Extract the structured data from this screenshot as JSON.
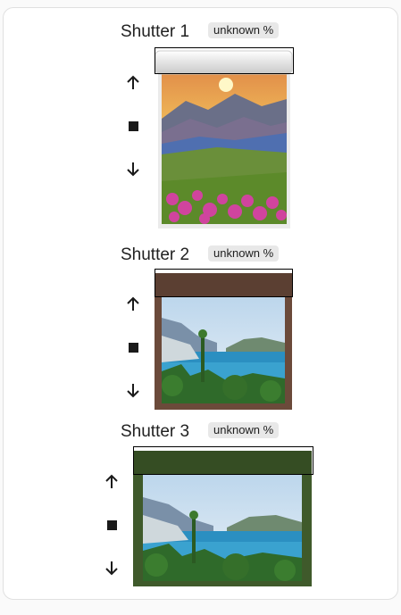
{
  "shutters": [
    {
      "title": "Shutter 1",
      "state": "unknown %",
      "frame_color": "#e8e8e8",
      "controls": {
        "up": "arrow-up-icon",
        "stop": "stop-icon",
        "down": "arrow-down-icon"
      },
      "scene": "mountain sunset with flower meadow"
    },
    {
      "title": "Shutter 2",
      "state": "unknown %",
      "frame_color": "#6b4a3a",
      "controls": {
        "up": "arrow-up-icon",
        "stop": "stop-icon",
        "down": "arrow-down-icon"
      },
      "scene": "coastal bay view"
    },
    {
      "title": "Shutter 3",
      "state": "unknown %",
      "frame_color": "#3f5a2b",
      "controls": {
        "up": "arrow-up-icon",
        "stop": "stop-icon",
        "down": "arrow-down-icon"
      },
      "scene": "coastal bay view"
    }
  ]
}
